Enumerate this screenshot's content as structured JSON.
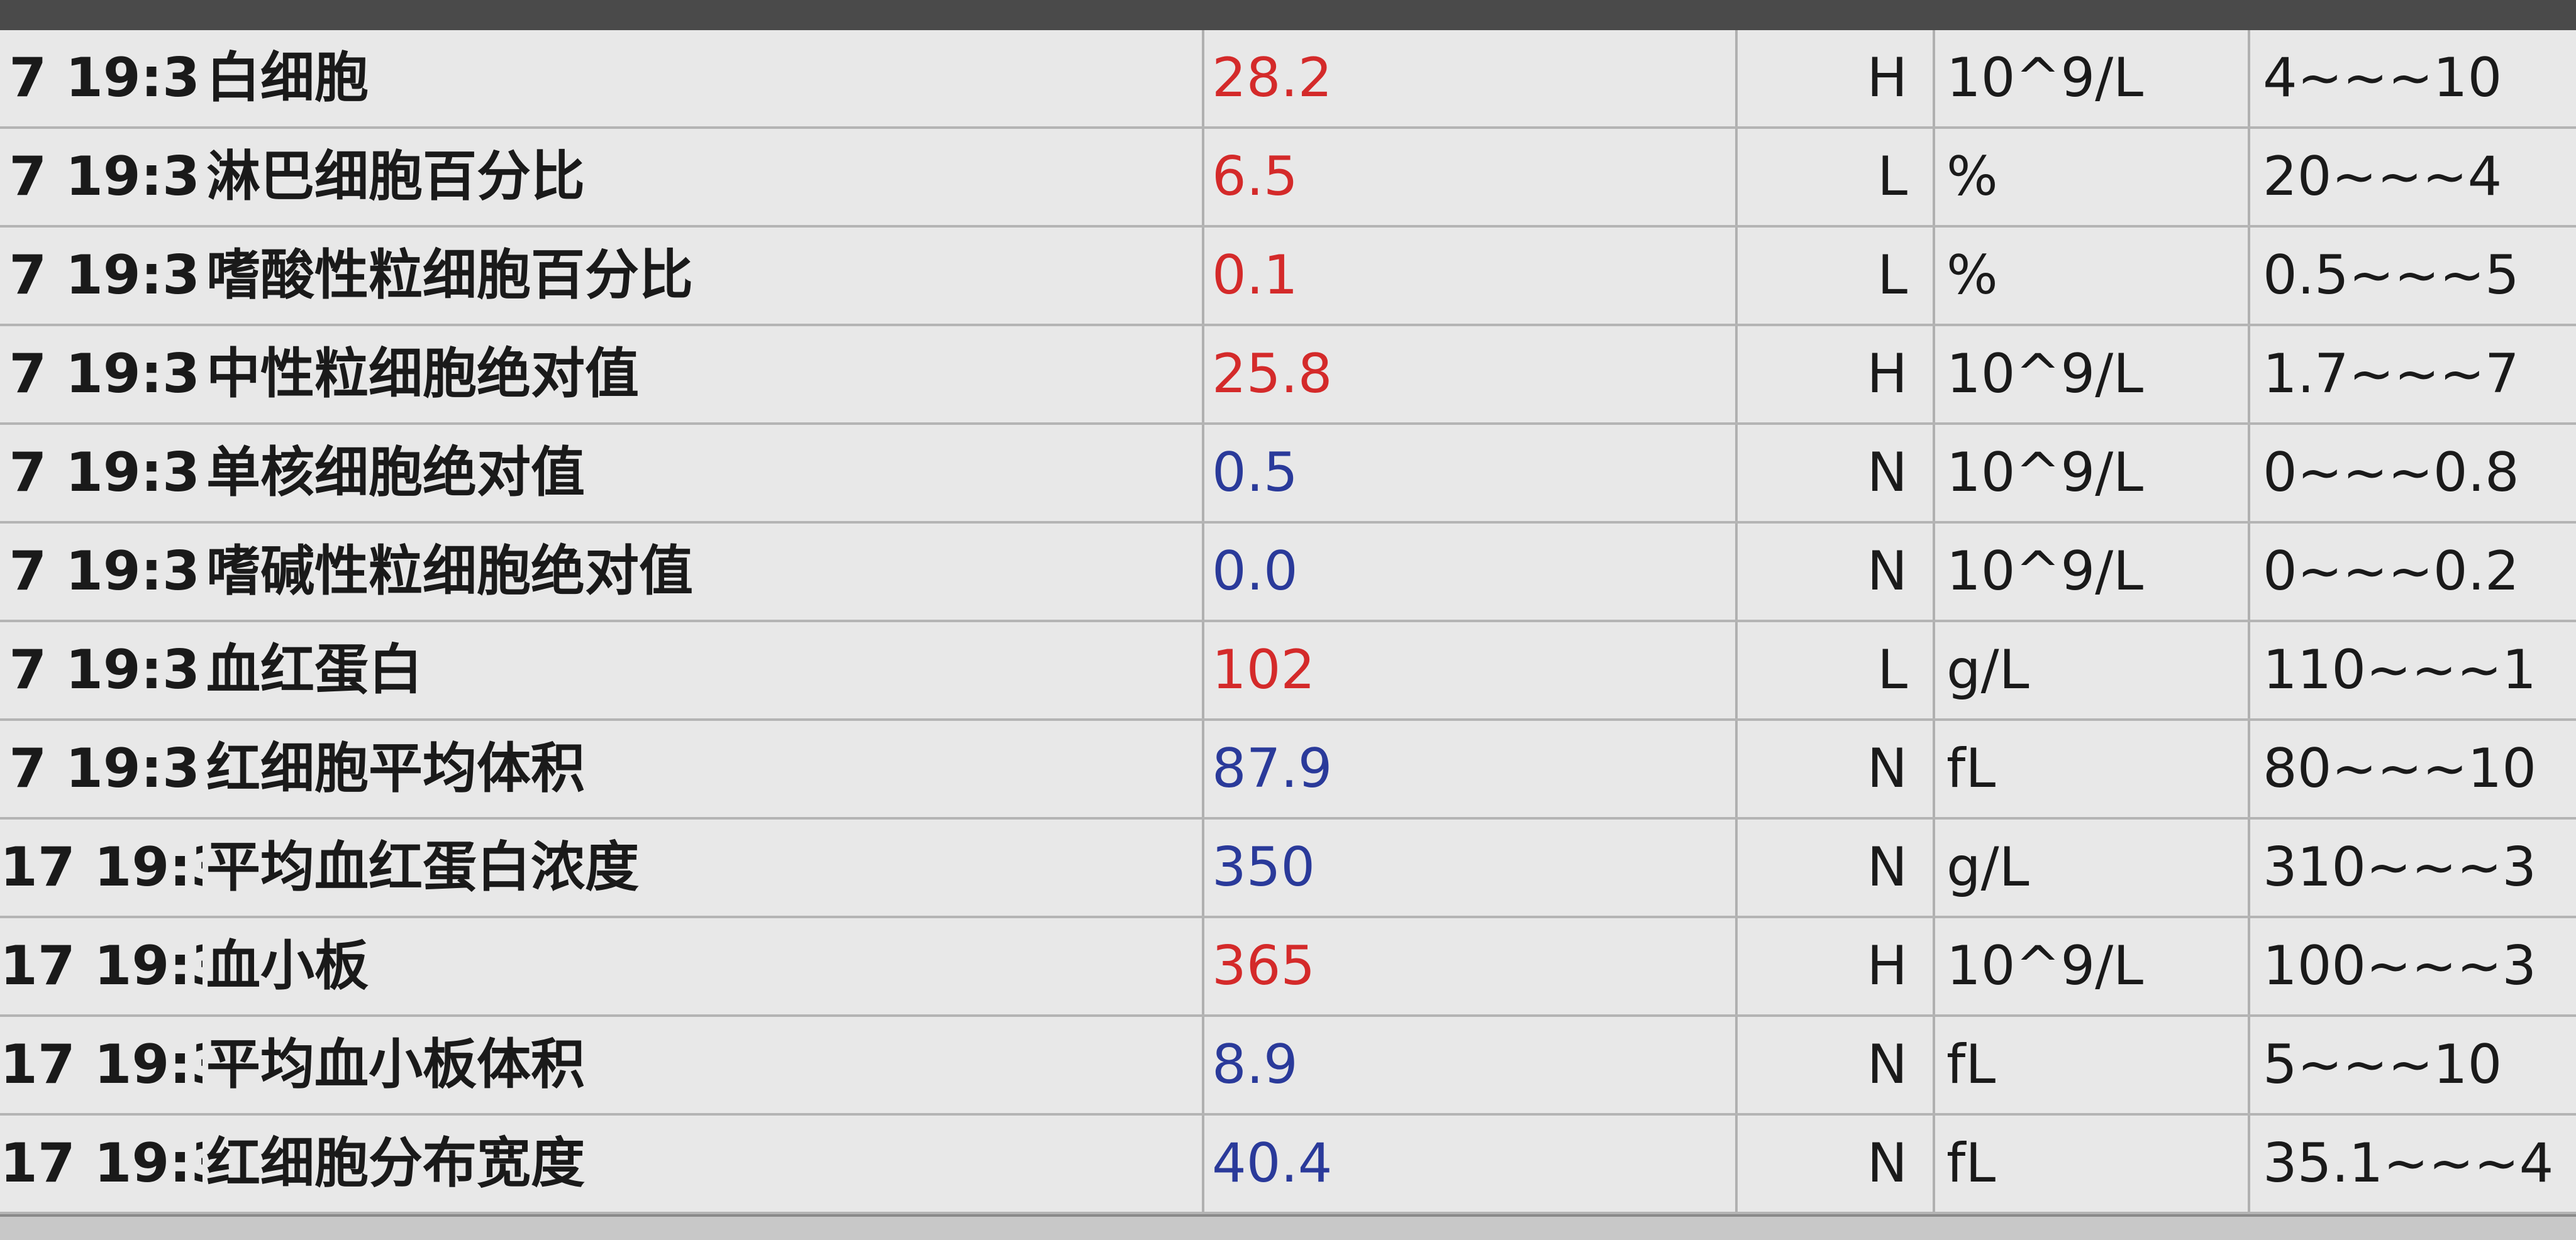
{
  "colors": {
    "high_low": "#d42a2a",
    "normal": "#2a3a9a"
  },
  "rows": [
    {
      "time": "7 19:3",
      "name": "白细胞",
      "value": "28.2",
      "flag": "H",
      "unit": "10^9/L",
      "range": "4~~~10"
    },
    {
      "time": "7 19:3",
      "name": "淋巴细胞百分比",
      "value": "6.5",
      "flag": "L",
      "unit": "%",
      "range": "20~~~4"
    },
    {
      "time": "7 19:3",
      "name": "嗜酸性粒细胞百分比",
      "value": "0.1",
      "flag": "L",
      "unit": "%",
      "range": "0.5~~~5"
    },
    {
      "time": "7 19:3",
      "name": "中性粒细胞绝对值",
      "value": "25.8",
      "flag": "H",
      "unit": "10^9/L",
      "range": "1.7~~~7"
    },
    {
      "time": "7 19:3",
      "name": "单核细胞绝对值",
      "value": "0.5",
      "flag": "N",
      "unit": "10^9/L",
      "range": "0~~~0.8"
    },
    {
      "time": "7 19:3",
      "name": "嗜碱性粒细胞绝对值",
      "value": "0.0",
      "flag": "N",
      "unit": "10^9/L",
      "range": "0~~~0.2"
    },
    {
      "time": "7 19:3",
      "name": "血红蛋白",
      "value": "102",
      "flag": "L",
      "unit": "g/L",
      "range": "110~~~1"
    },
    {
      "time": "7 19:3",
      "name": "红细胞平均体积",
      "value": "87.9",
      "flag": "N",
      "unit": "fL",
      "range": "80~~~10"
    },
    {
      "time": "17 19:3",
      "name": "平均血红蛋白浓度",
      "value": "350",
      "flag": "N",
      "unit": "g/L",
      "range": "310~~~3"
    },
    {
      "time": "17 19:3",
      "name": "血小板",
      "value": "365",
      "flag": "H",
      "unit": "10^9/L",
      "range": "100~~~3"
    },
    {
      "time": "17 19:3",
      "name": "平均血小板体积",
      "value": "8.9",
      "flag": "N",
      "unit": "fL",
      "range": "5~~~10"
    },
    {
      "time": "17 19:3",
      "name": "红细胞分布宽度",
      "value": "40.4",
      "flag": "N",
      "unit": "fL",
      "range": "35.1~~~4"
    }
  ]
}
